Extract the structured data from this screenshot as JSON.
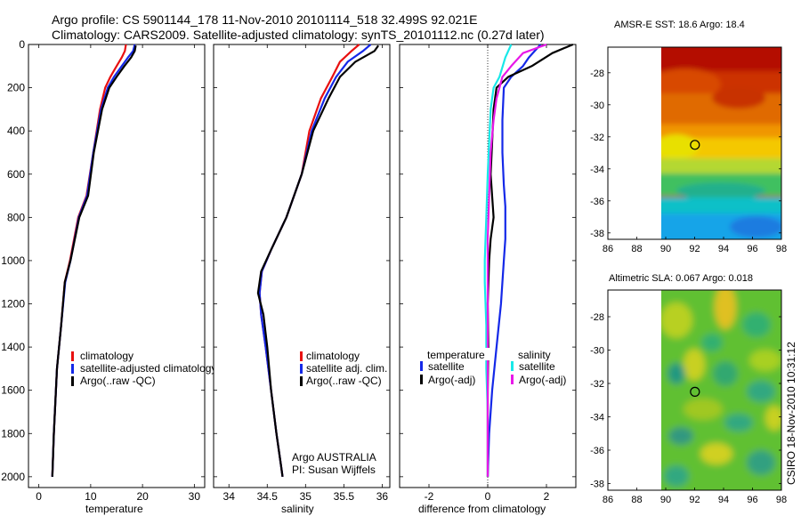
{
  "header": {
    "line1": "Argo profile: CS 5901144_178 11-Nov-2010 20101114_518 32.499S 92.021E",
    "line2": "Climatology: CARS2009. Satellite-adjusted climatology: synTS_20101112.nc (0.27d later)"
  },
  "colors": {
    "red": "#e81010",
    "blue": "#1428e8",
    "black": "#000000",
    "cyan": "#18e8e8",
    "magenta": "#e818e8"
  },
  "chart_data": [
    {
      "id": "temperature",
      "type": "line",
      "xlabel": "temperature",
      "xlim": [
        -2,
        32
      ],
      "ylim": [
        2050,
        0
      ],
      "invert_y": true,
      "xticks": [
        0,
        10,
        20,
        30
      ],
      "yticks": [
        0,
        200,
        400,
        600,
        800,
        1000,
        1200,
        1400,
        1600,
        1800,
        2000
      ],
      "legend": [
        "climatology",
        "satellite-adjusted climatology",
        "Argo(..raw -QC)"
      ],
      "legend_position": "lower-right",
      "series": [
        {
          "name": "climatology",
          "color": "red",
          "x": [
            16.8,
            16.6,
            16.0,
            15.0,
            13.8,
            12.8,
            11.8,
            10.5,
            9.2,
            7.6,
            6.0,
            5.0,
            4.3,
            3.5,
            2.9,
            2.6
          ],
          "y": [
            0,
            30,
            60,
            100,
            150,
            200,
            300,
            500,
            700,
            800,
            1000,
            1100,
            1300,
            1500,
            1800,
            2000
          ]
        },
        {
          "name": "satellite-adjusted climatology",
          "color": "blue",
          "x": [
            18.5,
            18.2,
            17.2,
            16.0,
            14.5,
            13.3,
            12.0,
            10.5,
            9.3,
            7.7,
            6.1,
            5.1,
            4.3,
            3.5,
            2.9,
            2.6
          ],
          "y": [
            0,
            30,
            60,
            100,
            150,
            200,
            300,
            500,
            700,
            800,
            1000,
            1100,
            1300,
            1500,
            1800,
            2000
          ]
        },
        {
          "name": "Argo(..raw -QC)",
          "color": "black",
          "x": [
            18.7,
            18.5,
            17.8,
            16.5,
            15.0,
            13.6,
            12.2,
            10.6,
            9.5,
            7.8,
            6.1,
            5.0,
            4.3,
            3.5,
            2.9,
            2.6
          ],
          "y": [
            5,
            30,
            60,
            100,
            150,
            200,
            300,
            500,
            700,
            800,
            1000,
            1100,
            1300,
            1500,
            1800,
            2000
          ]
        }
      ]
    },
    {
      "id": "salinity",
      "type": "line",
      "xlabel": "salinity",
      "xlim": [
        33.8,
        36.1
      ],
      "ylim": [
        2050,
        0
      ],
      "invert_y": true,
      "xticks": [
        34,
        34.5,
        35,
        35.5,
        36
      ],
      "legend": [
        "climatology",
        "satellite adj. clim.",
        "Argo(..raw -QC)"
      ],
      "legend_position": "lower-right",
      "annotations": [
        "Argo AUSTRALIA",
        "PI: Susan Wijffels"
      ],
      "series": [
        {
          "name": "climatology",
          "color": "red",
          "x": [
            35.7,
            35.6,
            35.45,
            35.35,
            35.2,
            35.05,
            34.95,
            34.75,
            34.55,
            34.43,
            34.4,
            34.42,
            34.48,
            34.55,
            34.62,
            34.68,
            34.7
          ],
          "y": [
            0,
            30,
            80,
            150,
            250,
            400,
            600,
            800,
            950,
            1050,
            1150,
            1250,
            1400,
            1600,
            1800,
            1950,
            2000
          ]
        },
        {
          "name": "satellite adj. clim.",
          "color": "blue",
          "x": [
            35.85,
            35.75,
            35.55,
            35.4,
            35.25,
            35.08,
            34.95,
            34.75,
            34.55,
            34.43,
            34.4,
            34.42,
            34.48,
            34.55,
            34.62,
            34.68,
            34.7
          ],
          "y": [
            0,
            30,
            80,
            150,
            250,
            400,
            600,
            800,
            950,
            1050,
            1150,
            1250,
            1400,
            1600,
            1800,
            1950,
            2000
          ]
        },
        {
          "name": "Argo(..raw -QC)",
          "color": "black",
          "x": [
            35.95,
            35.9,
            35.65,
            35.45,
            35.3,
            35.1,
            34.95,
            34.75,
            34.55,
            34.42,
            34.38,
            34.45,
            34.5,
            34.55,
            34.62,
            34.68,
            34.7
          ],
          "y": [
            5,
            30,
            80,
            150,
            250,
            400,
            600,
            800,
            950,
            1050,
            1150,
            1250,
            1400,
            1600,
            1800,
            1950,
            2000
          ]
        }
      ]
    },
    {
      "id": "difference",
      "type": "line",
      "xlabel": "difference from climatology",
      "xlim": [
        -3,
        3
      ],
      "ylim": [
        2050,
        0
      ],
      "invert_y": true,
      "xticks": [
        -2,
        0,
        2
      ],
      "zero_line": true,
      "legend_groups": [
        {
          "title": "temperature",
          "items": [
            {
              "label": "satellite",
              "color": "blue"
            },
            {
              "label": "Argo(-adj)",
              "color": "black"
            }
          ]
        },
        {
          "title": "salinity",
          "items": [
            {
              "label": "satellite",
              "color": "cyan"
            },
            {
              "label": "Argo(-adj)",
              "color": "magenta"
            }
          ]
        }
      ],
      "series": [
        {
          "name": "temperature satellite",
          "color": "blue",
          "x": [
            1.8,
            1.4,
            1.2,
            0.8,
            0.55,
            0.5,
            0.5,
            0.55,
            0.6,
            0.6,
            0.55,
            0.45,
            0.3,
            0.15,
            0.05,
            0.0
          ],
          "y": [
            0,
            60,
            100,
            150,
            200,
            350,
            500,
            650,
            750,
            900,
            1000,
            1200,
            1400,
            1600,
            1800,
            2000
          ]
        },
        {
          "name": "temperature Argo(-adj)",
          "color": "black",
          "x": [
            2.9,
            2.2,
            1.5,
            0.7,
            0.3,
            0.2,
            0.15,
            0.1,
            0.2,
            0.1,
            0.05,
            0.0,
            0.02,
            0.0,
            0.0,
            0.0
          ],
          "y": [
            0,
            40,
            100,
            150,
            200,
            300,
            450,
            600,
            800,
            900,
            1000,
            1200,
            1400,
            1600,
            1800,
            2000
          ]
        },
        {
          "name": "salinity satellite",
          "color": "cyan",
          "x": [
            0.8,
            0.6,
            0.4,
            0.2,
            0.1,
            0.05,
            0.0,
            -0.05,
            -0.1,
            -0.1,
            -0.05,
            -0.05,
            0.0,
            0.0,
            0.0
          ],
          "y": [
            0,
            60,
            150,
            200,
            300,
            450,
            600,
            800,
            1000,
            1100,
            1300,
            1500,
            1700,
            1900,
            2000
          ]
        },
        {
          "name": "salinity Argo(-adj)",
          "color": "magenta",
          "x": [
            2.0,
            1.2,
            0.8,
            0.5,
            0.3,
            0.2,
            0.1,
            0.05,
            0.0,
            0.0,
            0.0,
            0.0
          ],
          "y": [
            0,
            40,
            100,
            150,
            250,
            350,
            500,
            700,
            900,
            1200,
            1600,
            2000
          ]
        }
      ]
    },
    {
      "id": "sst_map",
      "type": "heatmap",
      "title": "AMSR-E SST: 18.6 Argo: 18.4",
      "xlim": [
        86,
        98
      ],
      "ylim": [
        -38.4,
        -26.4
      ],
      "xticks": [
        86,
        88,
        90,
        92,
        94,
        96,
        98
      ],
      "yticks": [
        -28,
        -30,
        -32,
        -34,
        -36,
        -38
      ],
      "data_lon_range": [
        90,
        98
      ],
      "marker": {
        "lon": 92.02,
        "lat": -32.5
      }
    },
    {
      "id": "sla_map",
      "type": "heatmap",
      "title": "Altimetric SLA: 0.067 Argo: 0.018",
      "xlim": [
        86,
        98
      ],
      "ylim": [
        -38.4,
        -26.4
      ],
      "xticks": [
        86,
        88,
        90,
        92,
        94,
        96,
        98
      ],
      "yticks": [
        -28,
        -30,
        -32,
        -34,
        -36,
        -38
      ],
      "data_lon_range": [
        90,
        98
      ],
      "marker": {
        "lon": 92.02,
        "lat": -32.5
      }
    }
  ],
  "side_label": "CSIRO 18-Nov-2010 10:31:12"
}
